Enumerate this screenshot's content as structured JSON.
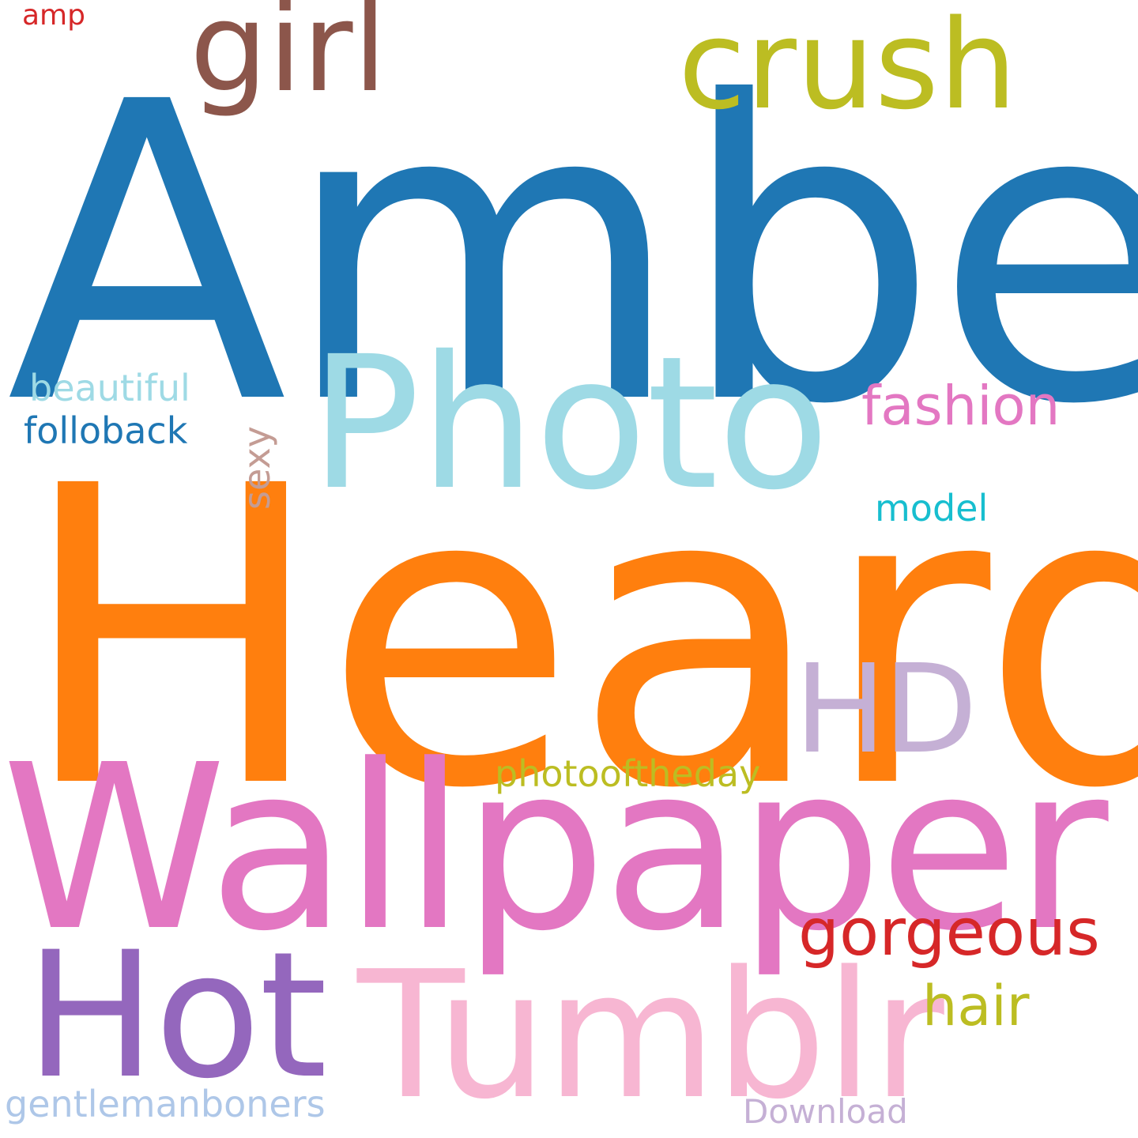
{
  "words": [
    {
      "text": "Amber",
      "color": "#1f77b4"
    },
    {
      "text": "Heard",
      "color": "#ff7f0e"
    },
    {
      "text": "Wallpaper",
      "color": "#e377c2"
    },
    {
      "text": "Photo",
      "color": "#9edae5"
    },
    {
      "text": "Tumblr",
      "color": "#f7b6d2"
    },
    {
      "text": "Hot",
      "color": "#9467bd"
    },
    {
      "text": "girl",
      "color": "#8c564b"
    },
    {
      "text": "crush",
      "color": "#bcbd22"
    },
    {
      "text": "HD",
      "color": "#c5b0d5"
    },
    {
      "text": "gorgeous",
      "color": "#d62728"
    },
    {
      "text": "fashion",
      "color": "#e377c2"
    },
    {
      "text": "hair",
      "color": "#bcbd22"
    },
    {
      "text": "beautiful",
      "color": "#9edae5"
    },
    {
      "text": "folloback",
      "color": "#1f77b4"
    },
    {
      "text": "photooftheday",
      "color": "#bcbd22"
    },
    {
      "text": "gentlemanboners",
      "color": "#aec7e8"
    },
    {
      "text": "model",
      "color": "#17becf"
    },
    {
      "text": "sexy",
      "color": "#c49c94"
    },
    {
      "text": "Download",
      "color": "#c5b0d5"
    },
    {
      "text": "amp",
      "color": "#d62728"
    }
  ]
}
